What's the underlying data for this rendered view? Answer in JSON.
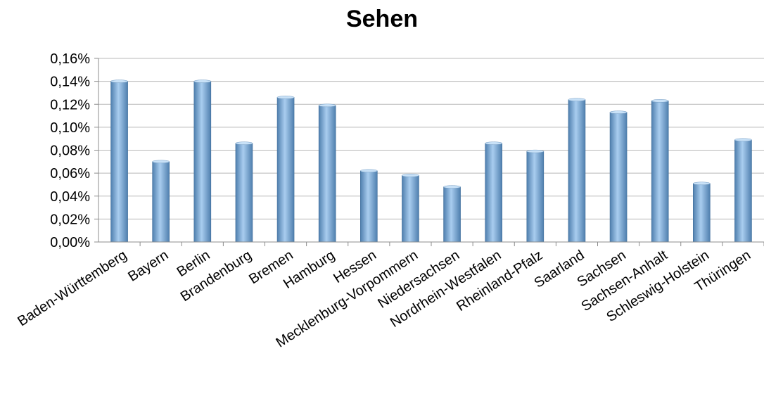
{
  "chart_data": {
    "type": "bar",
    "title": "Sehen",
    "xlabel": "",
    "ylabel": "",
    "categories": [
      "Baden-Württemberg",
      "Bayern",
      "Berlin",
      "Brandenburg",
      "Bremen",
      "Hamburg",
      "Hessen",
      "Mecklenburg-Vorpommern",
      "Niedersachsen",
      "Nordrhein-Westfalen",
      "Rheinland-Pfalz",
      "Saarland",
      "Sachsen",
      "Sachsen-Anhalt",
      "Schleswig-Holstein",
      "Thüringen"
    ],
    "values": [
      0.14,
      0.07,
      0.14,
      0.086,
      0.126,
      0.119,
      0.062,
      0.058,
      0.048,
      0.086,
      0.079,
      0.124,
      0.113,
      0.123,
      0.051,
      0.089
    ],
    "ylim": [
      0,
      0.16
    ],
    "yticks": [
      {
        "value": 0.0,
        "label": "0,00%"
      },
      {
        "value": 0.02,
        "label": "0,02%"
      },
      {
        "value": 0.04,
        "label": "0,04%"
      },
      {
        "value": 0.06,
        "label": "0,06%"
      },
      {
        "value": 0.08,
        "label": "0,08%"
      },
      {
        "value": 0.1,
        "label": "0,10%"
      },
      {
        "value": 0.12,
        "label": "0,12%"
      },
      {
        "value": 0.14,
        "label": "0,14%"
      },
      {
        "value": 0.16,
        "label": "0,16%"
      }
    ],
    "grid": true,
    "legend": "none",
    "colors": {
      "bar_dark": "#4f7fae",
      "bar_light": "#a9cdef",
      "bar_top": "#c8e1f7",
      "grid": "#b8b8b8",
      "axis": "#8c8c8c",
      "text": "#000000"
    }
  }
}
